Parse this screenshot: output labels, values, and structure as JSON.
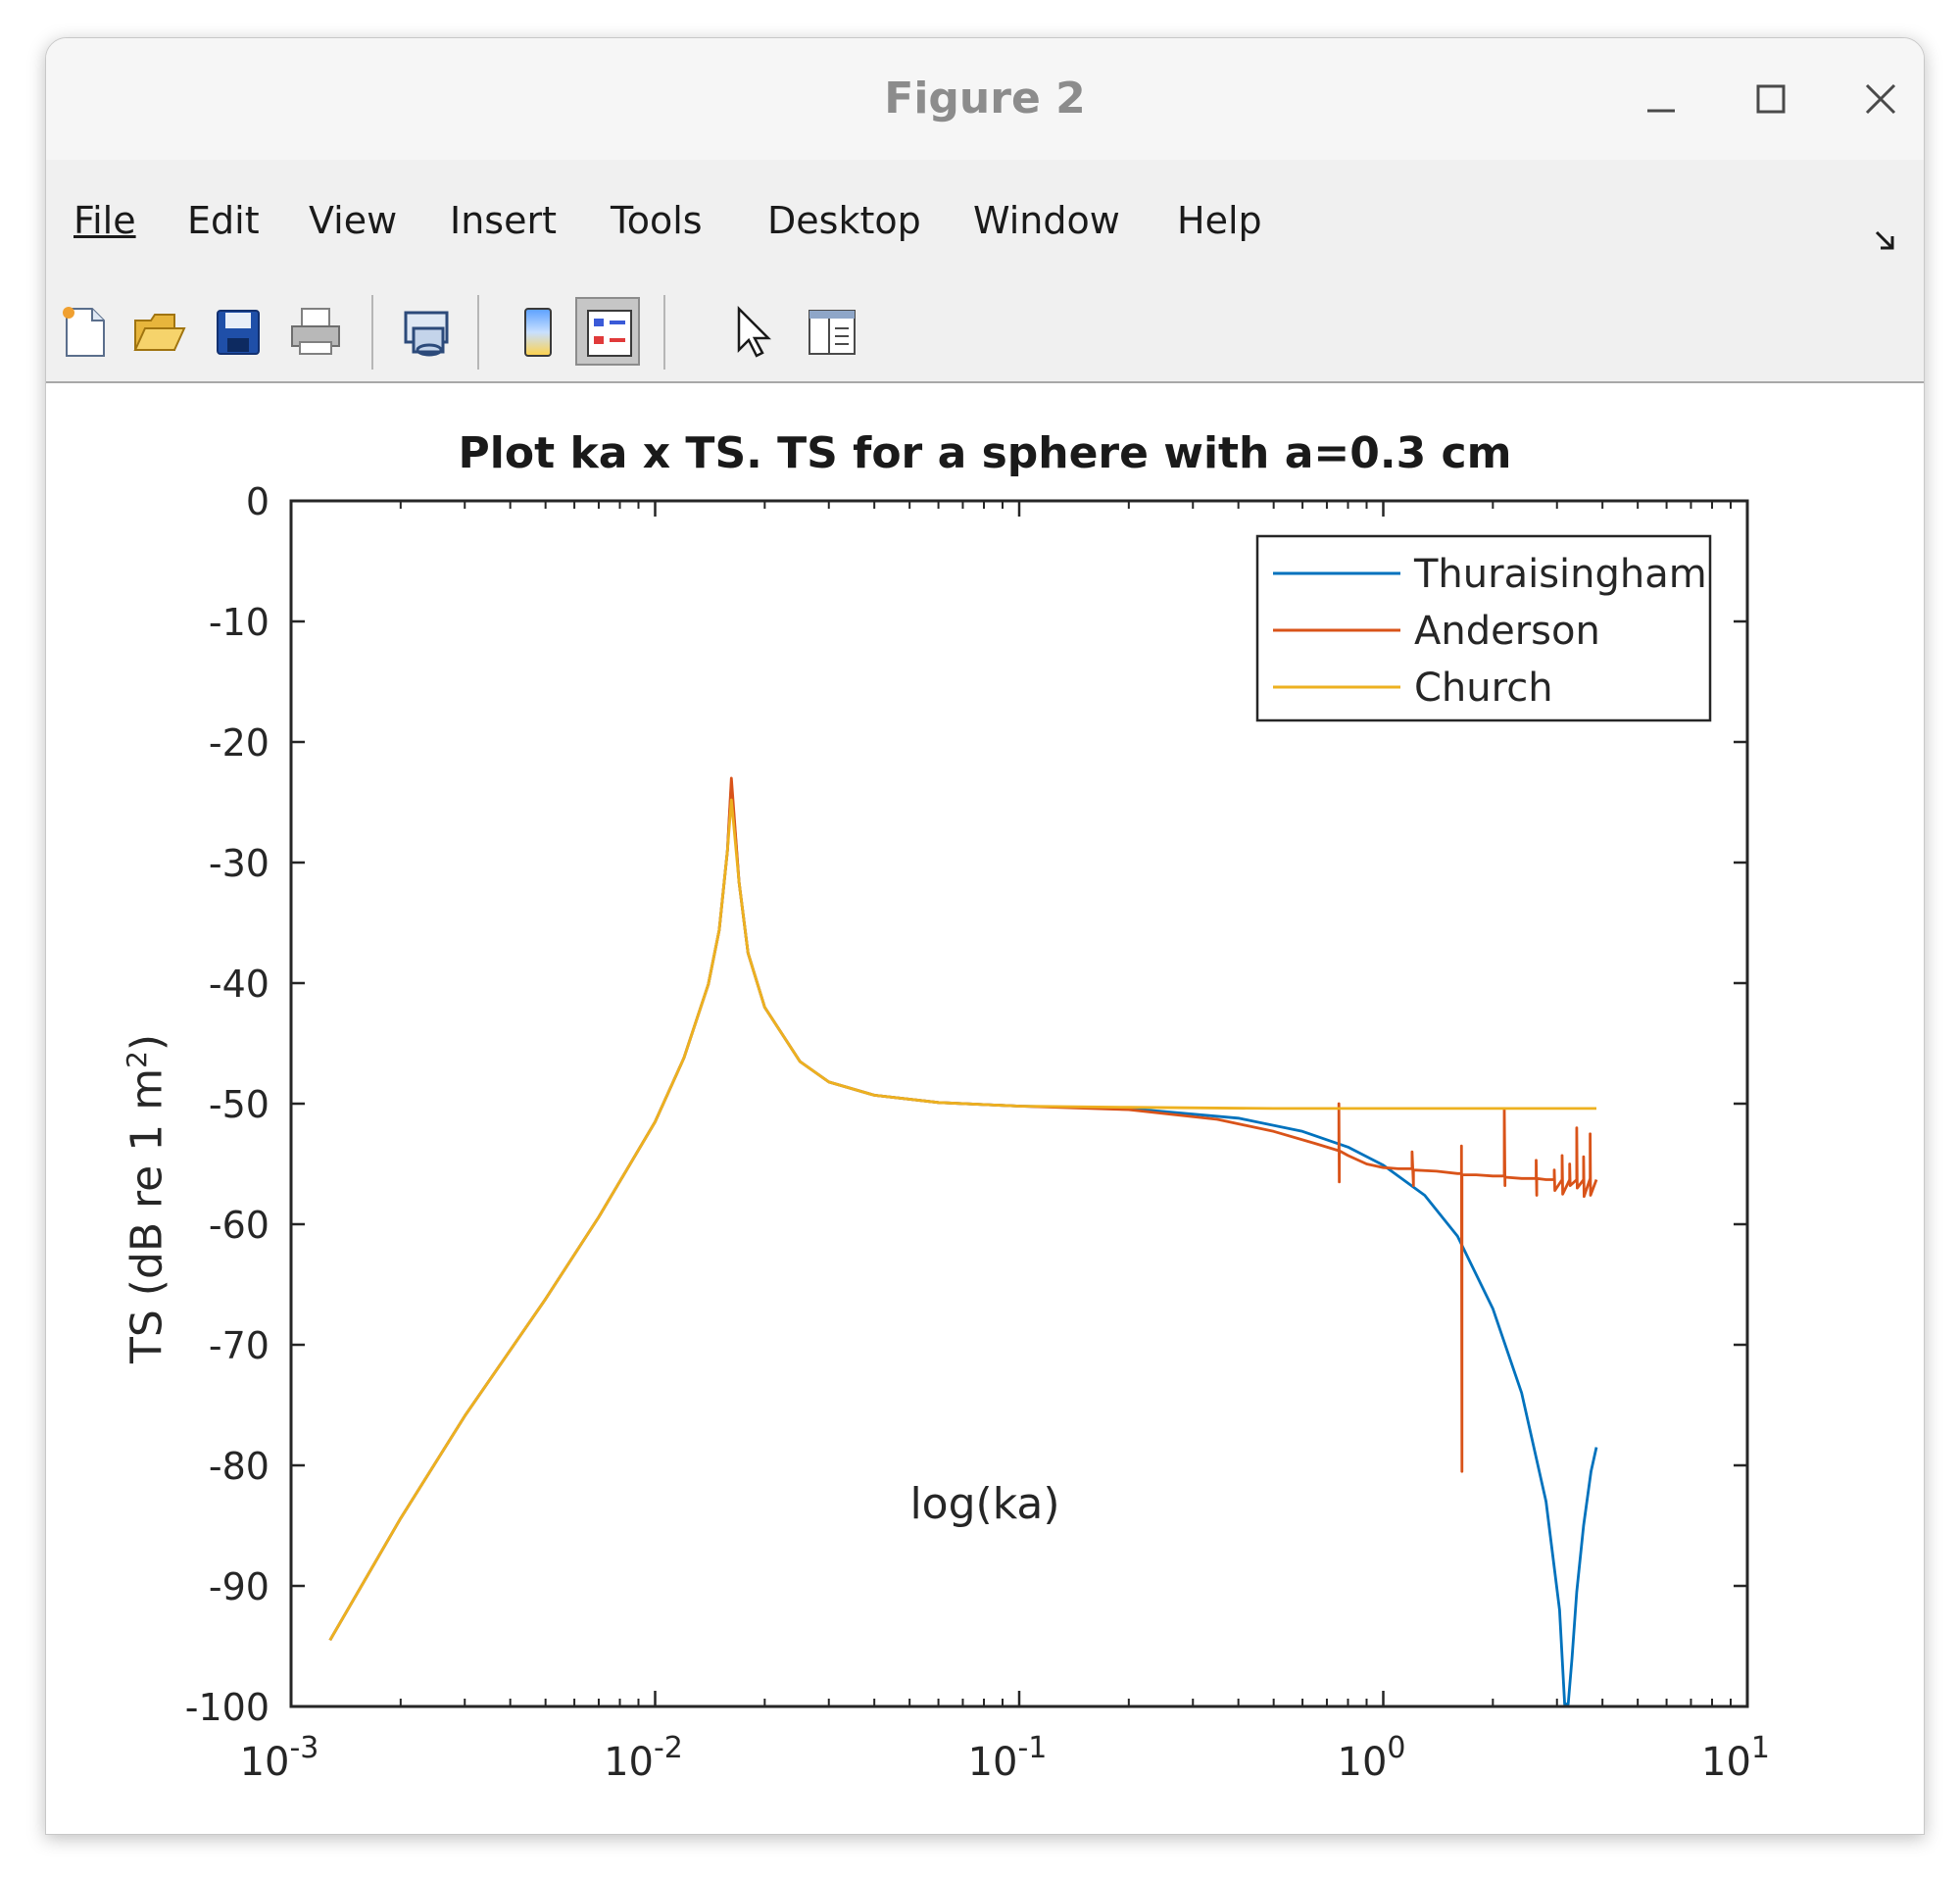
{
  "window": {
    "title": "Figure 2"
  },
  "menu": [
    "File",
    "Edit",
    "View",
    "Insert",
    "Tools",
    "Desktop",
    "Window",
    "Help"
  ],
  "toolbar": {
    "buttons": [
      "new-figure-icon",
      "open-file-icon",
      "save-icon",
      "print-icon",
      "link-plot-icon",
      "colorbar-icon",
      "legend-icon",
      "pointer-icon",
      "property-editor-icon"
    ],
    "pressed": "legend-icon"
  },
  "colors": {
    "thuraisingham": "#0072BD",
    "anderson": "#D95319",
    "church": "#EDB120"
  },
  "chart_data": {
    "type": "line",
    "title": "Plot ka x TS. TS for a sphere with a=0.3 cm",
    "xlabel": "log(ka)",
    "ylabel": "TS (dB re 1 m",
    "ylabel_sup": "2",
    "ylabel_close": ")",
    "xscale": "log",
    "xlim": [
      0.001,
      10
    ],
    "ylim": [
      -100,
      0
    ],
    "x_ticks": [
      {
        "base": "10",
        "exp": "-3"
      },
      {
        "base": "10",
        "exp": "-2"
      },
      {
        "base": "10",
        "exp": "-1"
      },
      {
        "base": "10",
        "exp": "0"
      },
      {
        "base": "10",
        "exp": "1"
      }
    ],
    "y_ticks": [
      "0",
      "-10",
      "-20",
      "-30",
      "-40",
      "-50",
      "-60",
      "-70",
      "-80",
      "-90",
      "-100"
    ],
    "legend": {
      "location": "top-right",
      "entries": [
        "Thuraisingham",
        "Anderson",
        "Church"
      ]
    },
    "grid": false,
    "series": [
      {
        "name": "Thuraisingham",
        "x": [
          0.00128,
          0.002,
          0.003,
          0.005,
          0.007,
          0.01,
          0.012,
          0.014,
          0.015,
          0.0158,
          0.0162,
          0.017,
          0.018,
          0.02,
          0.025,
          0.03,
          0.04,
          0.06,
          0.1,
          0.2,
          0.4,
          0.6,
          0.8,
          1.0,
          1.3,
          1.6,
          2.0,
          2.4,
          2.8,
          3.05,
          3.15,
          3.22,
          3.3,
          3.4,
          3.55,
          3.72,
          3.85
        ],
        "y": [
          -94.5,
          -84.4,
          -75.9,
          -66.2,
          -59.4,
          -51.5,
          -46.2,
          -40.1,
          -35.6,
          -29.0,
          -23.5,
          -31.6,
          -37.5,
          -42.0,
          -46.5,
          -48.2,
          -49.3,
          -49.9,
          -50.2,
          -50.4,
          -51.2,
          -52.3,
          -53.6,
          -55.1,
          -57.6,
          -61.0,
          -67.0,
          -74.0,
          -83.0,
          -92.0,
          -99.8,
          -99.8,
          -96.0,
          -90.5,
          -85.0,
          -80.5,
          -78.5
        ]
      },
      {
        "name": "Anderson",
        "x": [
          0.00128,
          0.002,
          0.003,
          0.005,
          0.007,
          0.01,
          0.012,
          0.014,
          0.015,
          0.0158,
          0.0162,
          0.017,
          0.018,
          0.02,
          0.025,
          0.03,
          0.04,
          0.06,
          0.1,
          0.2,
          0.35,
          0.5,
          0.65,
          0.755,
          0.755,
          0.757,
          0.757,
          0.8,
          0.9,
          1.0,
          1.1,
          1.2,
          1.2,
          1.21,
          1.21,
          1.4,
          1.6,
          1.64,
          1.64,
          1.645,
          1.645,
          1.8,
          2.0,
          2.15,
          2.15,
          2.16,
          2.16,
          2.4,
          2.6,
          2.63,
          2.63,
          2.64,
          2.64,
          2.8,
          2.95,
          2.95,
          2.96,
          3.1,
          3.1,
          3.11,
          3.25,
          3.25,
          3.26,
          3.4,
          3.4,
          3.41,
          3.55,
          3.55,
          3.56,
          3.7,
          3.7,
          3.71,
          3.85
        ],
        "y": [
          -94.5,
          -84.4,
          -75.9,
          -66.2,
          -59.4,
          -51.5,
          -46.2,
          -40.1,
          -35.6,
          -29.0,
          -23.0,
          -31.6,
          -37.5,
          -42.0,
          -46.5,
          -48.2,
          -49.3,
          -49.9,
          -50.2,
          -50.5,
          -51.3,
          -52.3,
          -53.3,
          -53.9,
          -50.0,
          -56.5,
          -53.9,
          -54.3,
          -55.0,
          -55.3,
          -55.4,
          -55.4,
          -54.0,
          -56.8,
          -55.5,
          -55.6,
          -55.8,
          -55.8,
          -53.5,
          -80.5,
          -55.9,
          -55.9,
          -56.0,
          -56.0,
          -50.5,
          -56.8,
          -56.1,
          -56.2,
          -56.2,
          -56.2,
          -54.7,
          -57.6,
          -56.2,
          -56.3,
          -56.3,
          -55.5,
          -57.2,
          -56.3,
          -54.3,
          -57.5,
          -56.3,
          -55.0,
          -56.8,
          -56.3,
          -52.0,
          -57.0,
          -56.3,
          -54.4,
          -57.7,
          -56.2,
          -52.5,
          -57.6,
          -56.3
        ]
      },
      {
        "name": "Church",
        "x": [
          0.00128,
          0.002,
          0.003,
          0.005,
          0.007,
          0.01,
          0.012,
          0.014,
          0.015,
          0.0158,
          0.0162,
          0.017,
          0.018,
          0.02,
          0.025,
          0.03,
          0.04,
          0.06,
          0.1,
          0.2,
          0.5,
          1.0,
          2.0,
          3.85
        ],
        "y": [
          -94.5,
          -84.4,
          -75.9,
          -66.2,
          -59.4,
          -51.5,
          -46.2,
          -40.1,
          -35.6,
          -29.0,
          -24.8,
          -31.6,
          -37.5,
          -42.0,
          -46.5,
          -48.2,
          -49.3,
          -49.9,
          -50.2,
          -50.3,
          -50.4,
          -50.4,
          -50.4,
          -50.4
        ]
      }
    ]
  }
}
